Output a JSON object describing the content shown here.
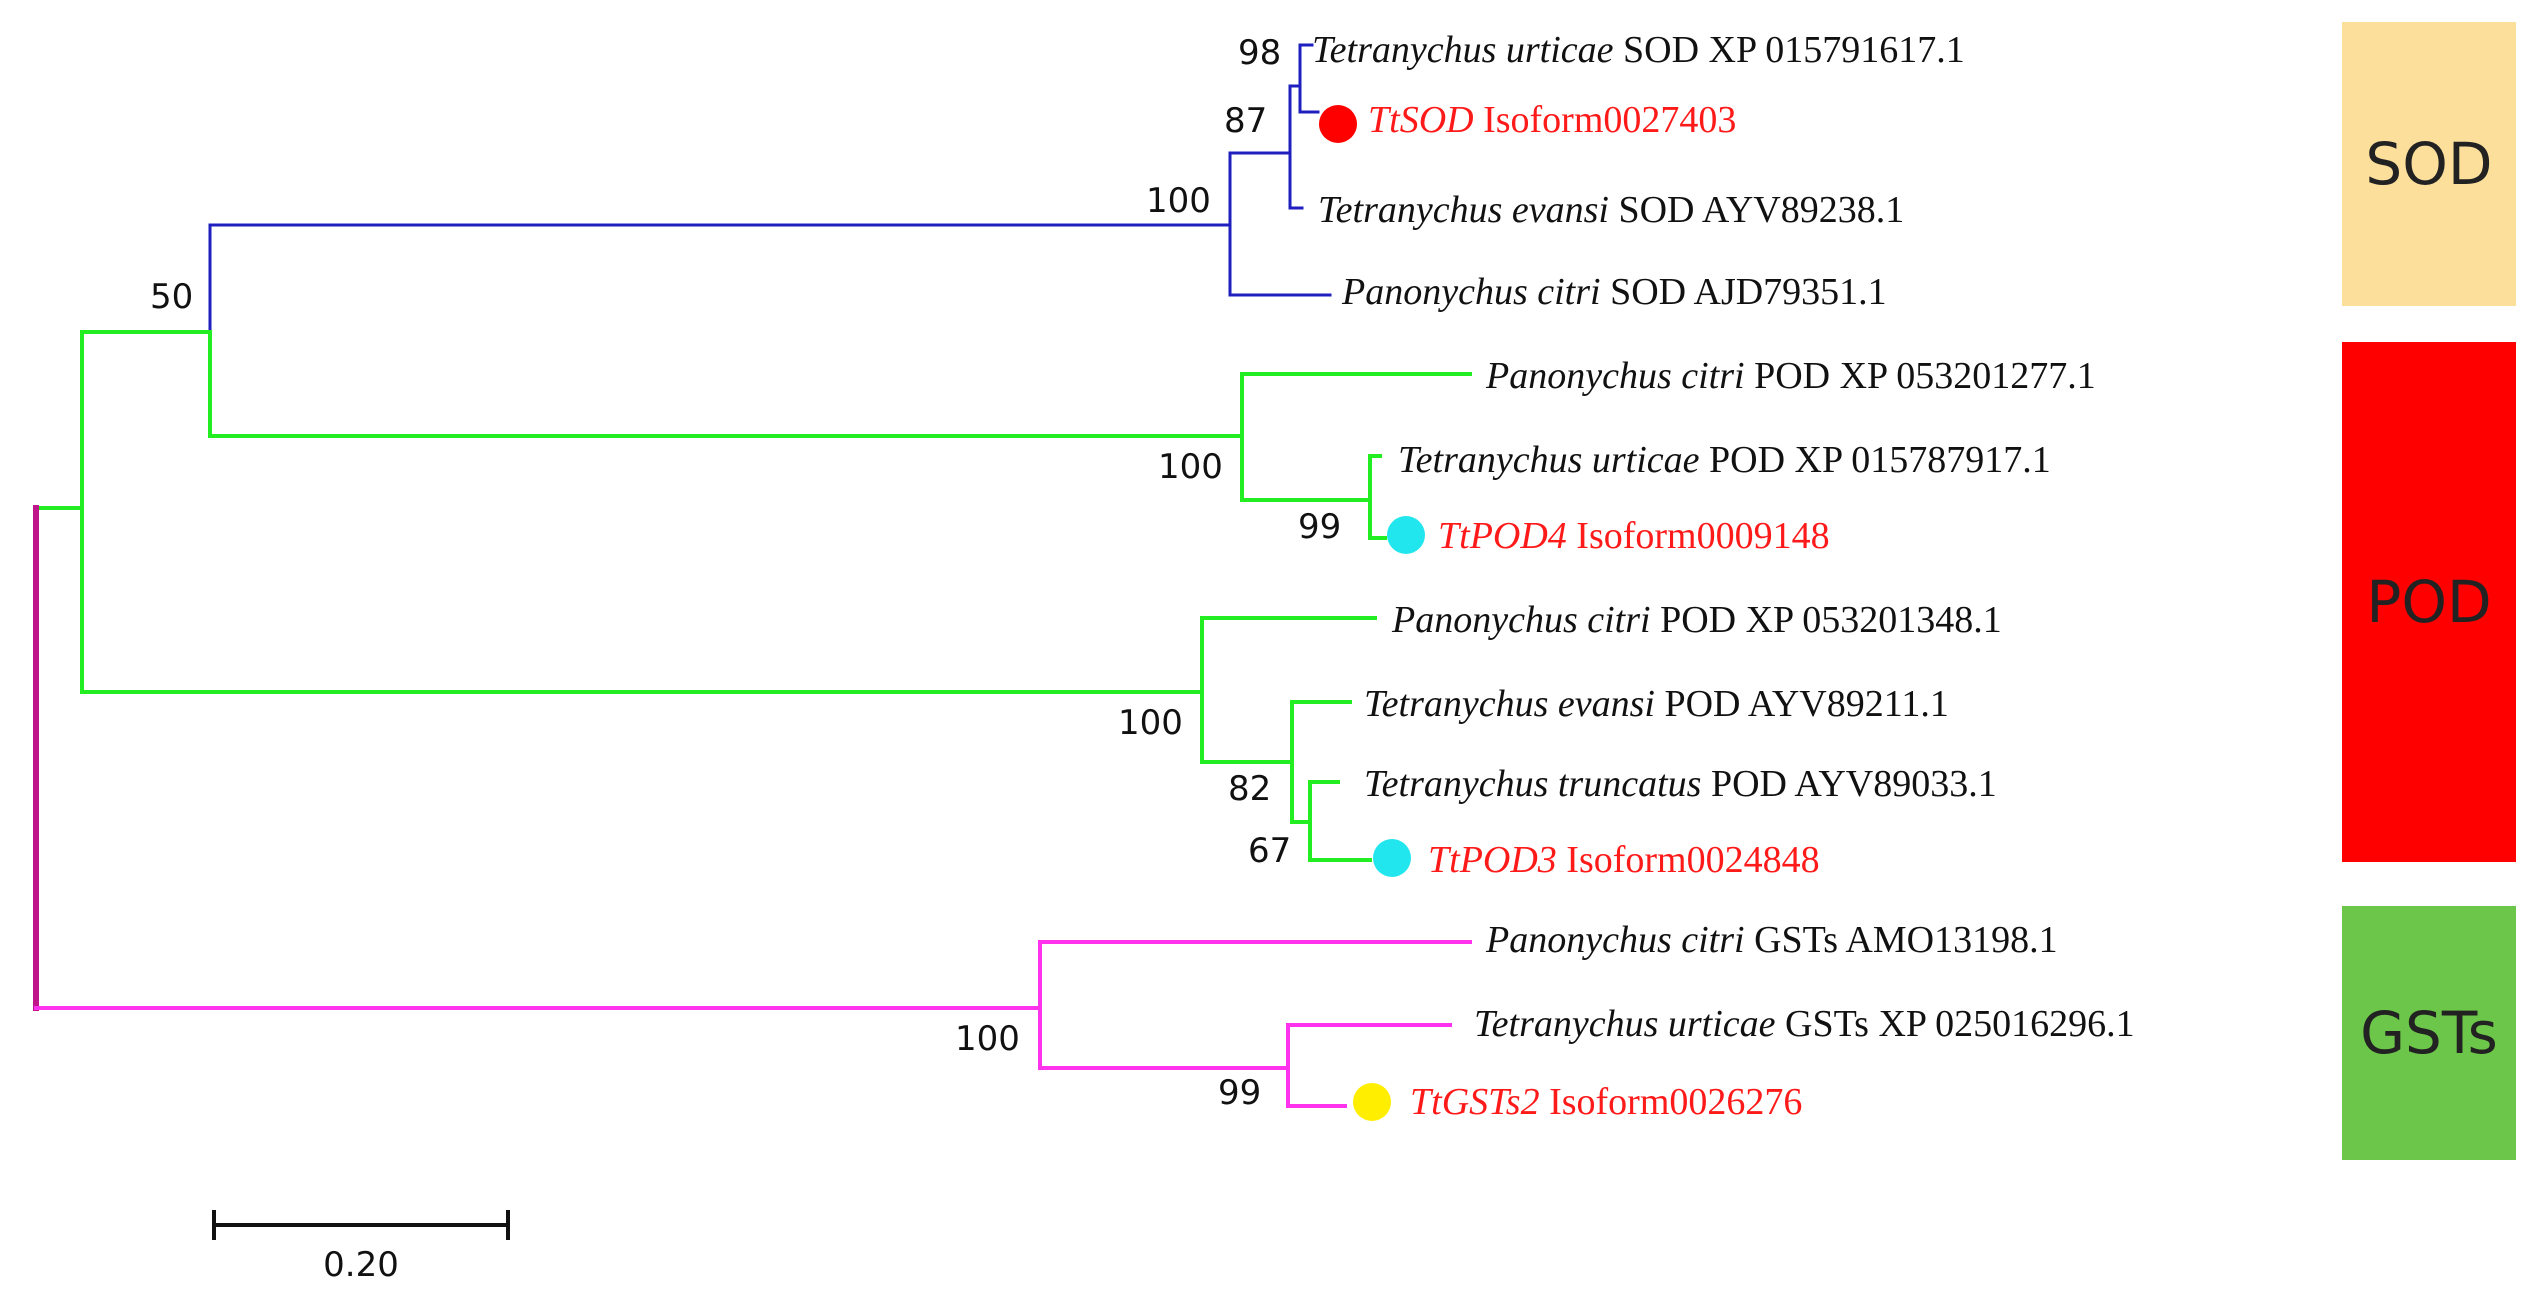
{
  "colors": {
    "sod_branch": "#1f1fc0",
    "pod_branch": "#22ee22",
    "gst_branch": "#ff33ee",
    "root_branch": "#c0148a",
    "leaf_text": "#111111",
    "highlight_text": "#ff1a1a",
    "sod_box": "#fbdf9b",
    "pod_box": "#ff0000",
    "gst_box": "#6cc64a",
    "marker_sod": "#ff0000",
    "marker_pod": "#22e6ee",
    "marker_gst": "#ffee00"
  },
  "clades": [
    {
      "label": "SOD",
      "box_color": "#fbdf9b"
    },
    {
      "label": "POD",
      "box_color": "#ff0000"
    },
    {
      "label": "GSTs",
      "box_color": "#6cc64a"
    }
  ],
  "leaves": [
    {
      "species": "Tetranychus urticae",
      "gene": "SOD",
      "accession": "XP 015791617.1",
      "highlight": false
    },
    {
      "species": "TtSOD",
      "gene": "",
      "accession": "Isoform0027403",
      "highlight": true,
      "marker": "red-circle-icon"
    },
    {
      "species": "Tetranychus evansi",
      "gene": "SOD",
      "accession": "AYV89238.1",
      "highlight": false
    },
    {
      "species": "Panonychus citri",
      "gene": "SOD",
      "accession": "AJD79351.1",
      "highlight": false
    },
    {
      "species": "Panonychus citri",
      "gene": "POD",
      "accession": "XP 053201277.1",
      "highlight": false
    },
    {
      "species": "Tetranychus urticae",
      "gene": "POD",
      "accession": "XP 015787917.1",
      "highlight": false
    },
    {
      "species": "TtPOD4",
      "gene": "",
      "accession": "Isoform0009148",
      "highlight": true,
      "marker": "cyan-circle-icon"
    },
    {
      "species": "Panonychus citri",
      "gene": "POD",
      "accession": "XP 053201348.1",
      "highlight": false
    },
    {
      "species": "Tetranychus evansi",
      "gene": "POD",
      "accession": "AYV89211.1",
      "highlight": false
    },
    {
      "species": "Tetranychus truncatus",
      "gene": "POD",
      "accession": "AYV89033.1",
      "highlight": false
    },
    {
      "species": "TtPOD3",
      "gene": "",
      "accession": "Isoform0024848",
      "highlight": true,
      "marker": "cyan-circle-icon"
    },
    {
      "species": "Panonychus citri",
      "gene": "GSTs",
      "accession": "AMO13198.1",
      "highlight": false
    },
    {
      "species": "Tetranychus urticae",
      "gene": "GSTs",
      "accession": "XP 025016296.1",
      "highlight": false
    },
    {
      "species": "TtGSTs2",
      "gene": "",
      "accession": "Isoform0026276",
      "highlight": true,
      "marker": "yellow-circle-icon"
    }
  ],
  "bootstrap": [
    "98",
    "87",
    "100",
    "50",
    "100",
    "99",
    "100",
    "82",
    "67",
    "100",
    "99"
  ],
  "scale_bar": {
    "label": "0.20"
  }
}
